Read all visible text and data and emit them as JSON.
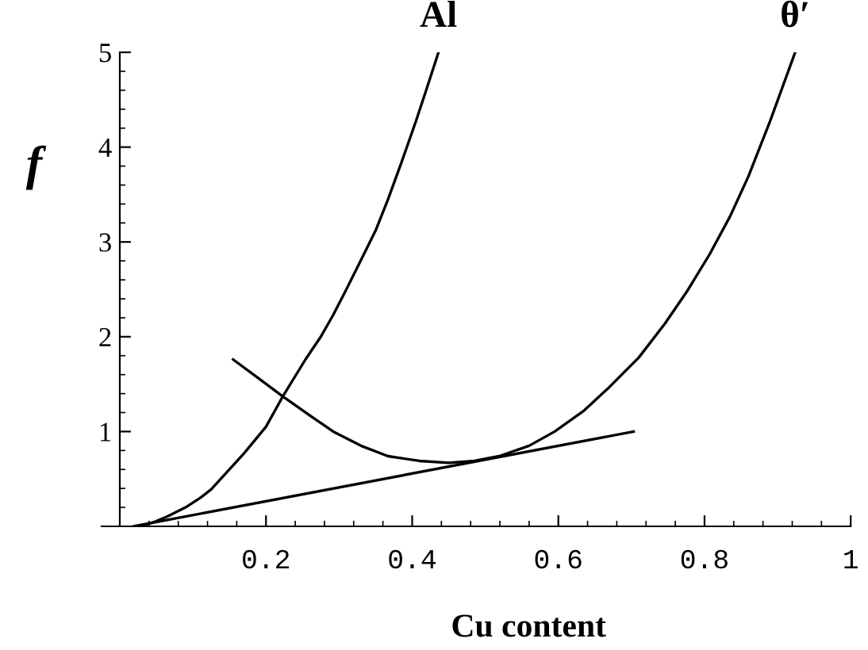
{
  "chart_data": {
    "type": "line",
    "xlabel": "Cu content",
    "ylabel": "f",
    "xlim": [
      -0.025,
      1.0
    ],
    "ylim": [
      0,
      5
    ],
    "xticks": [
      0.2,
      0.4,
      0.6,
      0.8,
      1
    ],
    "yticks": [
      1,
      2,
      3,
      4,
      5
    ],
    "grid": false,
    "legend": false,
    "marker": "none",
    "line_style": "solid",
    "series": [
      {
        "name": "Al",
        "color": "#000000",
        "x": [
          0.027,
          0.045,
          0.064,
          0.09,
          0.11,
          0.125,
          0.15,
          0.17,
          0.2,
          0.223,
          0.254,
          0.275,
          0.292,
          0.31,
          0.33,
          0.35,
          0.367,
          0.385,
          0.405,
          0.42,
          0.436
        ],
        "values": [
          0,
          0.04,
          0.1,
          0.2,
          0.3,
          0.39,
          0.6,
          0.77,
          1.05,
          1.37,
          1.76,
          2.0,
          2.23,
          2.5,
          2.81,
          3.12,
          3.45,
          3.83,
          4.27,
          4.62,
          5.0
        ]
      },
      {
        "name": "θ′",
        "color": "#000000",
        "x": [
          0.155,
          0.19,
          0.223,
          0.26,
          0.292,
          0.33,
          0.367,
          0.41,
          0.45,
          0.485,
          0.519,
          0.56,
          0.595,
          0.635,
          0.67,
          0.71,
          0.746,
          0.777,
          0.807,
          0.835,
          0.86,
          0.89,
          0.924
        ],
        "values": [
          1.76,
          1.56,
          1.37,
          1.17,
          1.0,
          0.85,
          0.74,
          0.69,
          0.67,
          0.69,
          0.74,
          0.85,
          1.0,
          1.22,
          1.47,
          1.78,
          2.14,
          2.49,
          2.87,
          3.27,
          3.69,
          4.28,
          5.0
        ]
      },
      {
        "color": "#000000",
        "x": [
          0.019,
          0.703
        ],
        "values": [
          0,
          1.0
        ]
      }
    ]
  }
}
